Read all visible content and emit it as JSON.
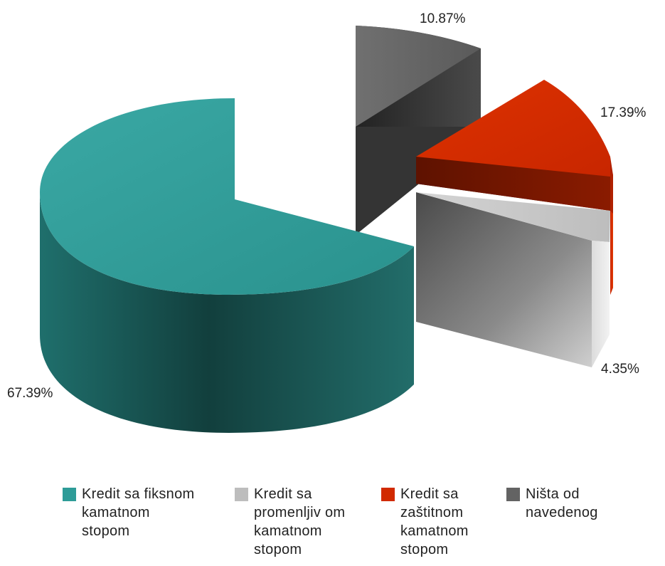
{
  "chart_data": {
    "type": "pie",
    "title": "",
    "series": [
      {
        "name": "Kredit sa fiksnom kamatnom stopom",
        "value": 67.39,
        "label": "67.39%",
        "color": "#2e9c98"
      },
      {
        "name": "Kredit sa promenljivom kamatnom stopom",
        "value": 4.35,
        "label": "4.35%",
        "color": "#bdbdbd"
      },
      {
        "name": "Kredit sa zaštitnom kamatnom stopom",
        "value": 17.39,
        "label": "17.39%",
        "color": "#d12a00"
      },
      {
        "name": "Ništa od navedenog",
        "value": 10.87,
        "label": "10.87%",
        "color": "#636363"
      }
    ],
    "legend": {
      "placement": "bottom",
      "items": [
        {
          "lines": [
            "Kredit sa fiksnom",
            "kamatnom",
            "stopom"
          ],
          "color": "#2e9c98"
        },
        {
          "lines": [
            "Kredit sa",
            "promenljiv om",
            "kamatnom",
            "stopom"
          ],
          "color": "#bdbdbd"
        },
        {
          "lines": [
            "Kredit sa",
            "zaštitnom",
            "kamatnom",
            "stopom"
          ],
          "color": "#d12a00"
        },
        {
          "lines": [
            "Ništa od",
            "navedenog"
          ],
          "color": "#636363"
        }
      ]
    },
    "style": "3d exploded pie"
  }
}
